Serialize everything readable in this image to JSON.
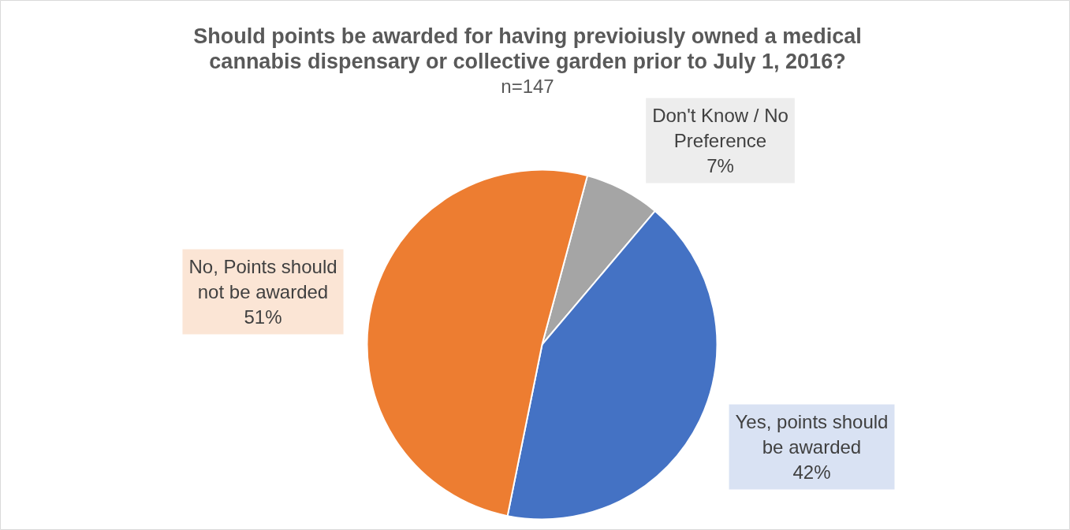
{
  "chart_data": {
    "type": "pie",
    "title": "Should points be awarded for having previoiusly owned a medical cannabis dispensary or collective garden prior to July 1, 2016?",
    "subtitle": "n=147",
    "categories": [
      "Don't Know / No Preference",
      "Yes, points should be awarded",
      "No, Points should not be awarded"
    ],
    "values": [
      7,
      42,
      51
    ],
    "colors": [
      "#a5a5a5",
      "#4472c4",
      "#ed7d31"
    ],
    "value_labels": [
      "7%",
      "42%",
      "51%"
    ]
  }
}
